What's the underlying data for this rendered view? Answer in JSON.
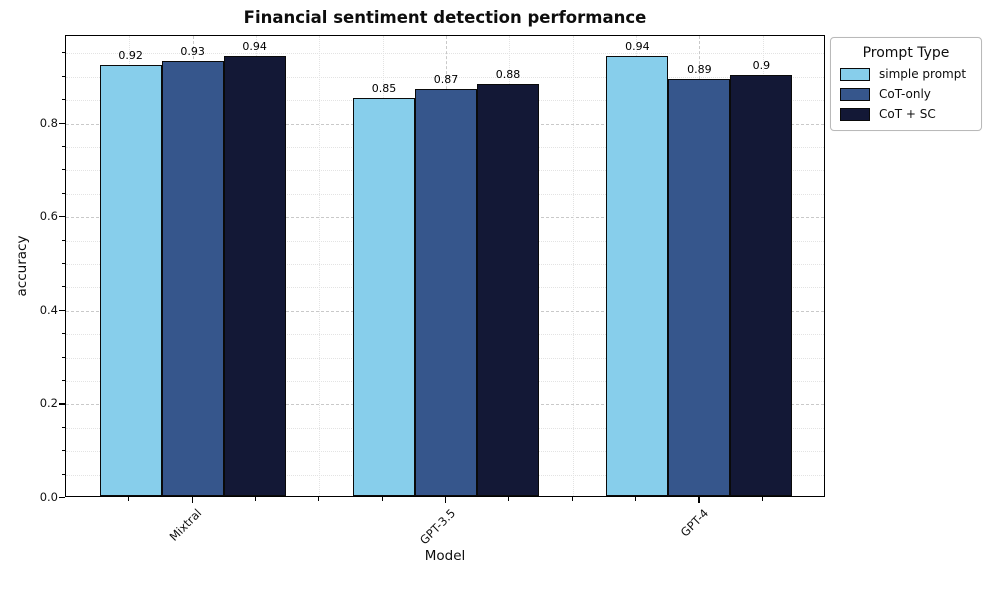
{
  "chart_data": {
    "type": "bar",
    "title": "Financial sentiment detection performance",
    "xlabel": "Model",
    "ylabel": "accuracy",
    "categories": [
      "Mixtral",
      "GPT-3.5",
      "GPT-4"
    ],
    "series": [
      {
        "name": "simple prompt",
        "color": "#87CEEB",
        "edge_color": "#0a0a0a",
        "values": [
          0.92,
          0.85,
          0.94
        ],
        "labels": [
          "0.92",
          "0.85",
          "0.94"
        ]
      },
      {
        "name": "CoT-only",
        "color": "#36568C",
        "edge_color": "#0a0a0a",
        "values": [
          0.93,
          0.87,
          0.89
        ],
        "labels": [
          "0.93",
          "0.87",
          "0.89"
        ]
      },
      {
        "name": "CoT + SC",
        "color": "#131836",
        "edge_color": "#0a0a0a",
        "values": [
          0.94,
          0.88,
          0.9
        ],
        "labels": [
          "0.94",
          "0.88",
          "0.9"
        ]
      }
    ],
    "ylim": [
      0,
      0.987
    ],
    "yticks": [
      0.0,
      0.2,
      0.4,
      0.6,
      0.8
    ],
    "ytick_labels": [
      "0.0",
      "0.2",
      "0.4",
      "0.6",
      "0.8"
    ],
    "grid": {
      "major": true,
      "minor": true
    },
    "legend": {
      "title": "Prompt Type",
      "position": "outside-upper-right"
    }
  }
}
